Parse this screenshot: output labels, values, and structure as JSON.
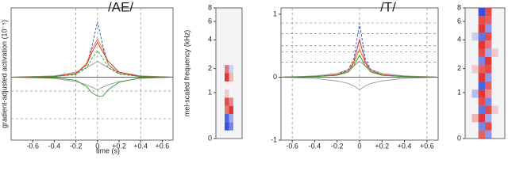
{
  "chart_data": [
    {
      "type": "line",
      "title": "/AE/",
      "xlabel": "time (s)",
      "ylabel": "gradient-adjusted activation (10⁻⁵)",
      "xlim": [
        -0.8,
        0.7
      ],
      "ylim": [
        -1,
        1.1
      ],
      "xticks": [
        -0.6,
        -0.4,
        -0.2,
        0,
        {
          "value": 0.2,
          "label": "+0.2"
        },
        {
          "value": 0.4,
          "label": "+0.4"
        },
        {
          "value": 0.6,
          "label": "+0.6"
        }
      ],
      "vlines": [
        -0.2,
        0,
        0.4
      ],
      "hlines": [
        -0.22,
        -0.66
      ],
      "x": [
        -0.8,
        -0.4,
        -0.2,
        -0.1,
        -0.05,
        0,
        0.05,
        0.1,
        0.2,
        0.4,
        0.7
      ],
      "series": [
        {
          "color": "#999999",
          "values": [
            0,
            0.02,
            0.08,
            0.15,
            0.2,
            0.25,
            0.2,
            0.15,
            0.08,
            0.02,
            0
          ]
        },
        {
          "color": "#999999",
          "values": [
            0,
            -0.02,
            -0.07,
            -0.12,
            -0.16,
            -0.2,
            -0.16,
            -0.12,
            -0.07,
            -0.02,
            0
          ]
        },
        {
          "color": "#1f4fd8",
          "dashed": true,
          "values": [
            0,
            0.01,
            0.05,
            0.2,
            0.5,
            0.88,
            0.5,
            0.2,
            0.05,
            0.01,
            0
          ]
        },
        {
          "color": "#e07020",
          "values": [
            0,
            0.01,
            0.05,
            0.22,
            0.45,
            0.6,
            0.45,
            0.2,
            0.06,
            0.01,
            0
          ]
        },
        {
          "color": "#d62728",
          "values": [
            0,
            0.01,
            0.06,
            0.2,
            0.4,
            0.55,
            0.4,
            0.25,
            0.08,
            0.01,
            0
          ]
        },
        {
          "color": "#2ca02c",
          "dashed": true,
          "values": [
            0,
            0.01,
            0.04,
            0.15,
            0.3,
            0.42,
            0.3,
            0.15,
            0.05,
            0.01,
            0
          ]
        },
        {
          "color": "#2ca02c",
          "values": [
            0,
            -0.01,
            -0.05,
            -0.15,
            -0.25,
            -0.3,
            -0.3,
            -0.2,
            -0.08,
            -0.01,
            0
          ]
        }
      ]
    },
    {
      "type": "heatmap",
      "ylabel": "mel-scaled frequency (kHz)",
      "scale": "mel",
      "ylim": [
        0,
        8
      ],
      "yticks": [
        8,
        6,
        4,
        2,
        1,
        0
      ],
      "z": [
        [
          0,
          0,
          0,
          0,
          0,
          0
        ],
        [
          0,
          0,
          -0.9,
          -0.6,
          0,
          0
        ],
        [
          0,
          0,
          -0.8,
          -0.4,
          0,
          0
        ],
        [
          0,
          0,
          0.6,
          0.9,
          0,
          0
        ],
        [
          0,
          0,
          0.8,
          0.5,
          0,
          0
        ],
        [
          0,
          0,
          0.2,
          0,
          0,
          0
        ],
        [
          0,
          0,
          0,
          0,
          0,
          0
        ],
        [
          0,
          0,
          0.9,
          0.3,
          0,
          0
        ],
        [
          0,
          0,
          0.6,
          -0.2,
          0,
          0
        ],
        [
          0,
          0,
          0,
          0,
          0,
          0
        ],
        [
          0,
          0,
          0,
          0,
          0,
          0
        ],
        [
          0,
          0,
          0,
          0,
          0,
          0
        ],
        [
          0,
          0,
          0,
          0,
          0,
          0
        ],
        [
          0,
          0,
          0,
          0,
          0,
          0
        ],
        [
          0,
          0,
          0,
          0,
          0,
          0
        ],
        [
          0,
          0,
          0,
          0,
          0,
          0
        ]
      ]
    },
    {
      "type": "line",
      "title": "/T/",
      "xlim": [
        -0.7,
        0.7
      ],
      "ylim": [
        -1,
        1.1
      ],
      "xticks": [
        -0.6,
        -0.4,
        -0.2,
        0,
        {
          "value": 0.2,
          "label": "+0.2"
        },
        {
          "value": 0.4,
          "label": "+0.4"
        },
        {
          "value": 0.6,
          "label": "+0.6"
        }
      ],
      "yticks": [
        1,
        0,
        -1
      ],
      "vlines": [
        -0.6,
        0,
        0.6
      ],
      "hlines": [
        0.86,
        0.69,
        0.5,
        0.4,
        0.24
      ],
      "x": [
        -0.7,
        -0.4,
        -0.2,
        -0.1,
        -0.05,
        0,
        0.05,
        0.1,
        0.2,
        0.4,
        0.7
      ],
      "series": [
        {
          "color": "#999999",
          "values": [
            0,
            0.02,
            0.06,
            0.12,
            0.18,
            0.25,
            0.18,
            0.12,
            0.06,
            0.02,
            0
          ]
        },
        {
          "color": "#999999",
          "values": [
            0,
            -0.02,
            -0.06,
            -0.1,
            -0.14,
            -0.2,
            -0.14,
            -0.1,
            -0.06,
            -0.02,
            0
          ]
        },
        {
          "color": "#1f4fd8",
          "dashed": true,
          "values": [
            0,
            0.01,
            0.04,
            0.12,
            0.3,
            0.85,
            0.3,
            0.12,
            0.04,
            0.01,
            0
          ]
        },
        {
          "color": "#d62728",
          "values": [
            0,
            0.01,
            0.04,
            0.1,
            0.25,
            0.6,
            0.25,
            0.1,
            0.04,
            0.01,
            0
          ]
        },
        {
          "color": "#e07020",
          "values": [
            0,
            0.01,
            0.03,
            0.1,
            0.22,
            0.45,
            0.22,
            0.1,
            0.03,
            0.01,
            0
          ]
        },
        {
          "color": "#2ca02c",
          "values": [
            0,
            0.01,
            0.03,
            0.08,
            0.18,
            0.35,
            0.18,
            0.08,
            0.03,
            0.01,
            0
          ]
        }
      ]
    },
    {
      "type": "heatmap",
      "scale": "mel",
      "ylim": [
        0,
        8
      ],
      "yticks": [
        8,
        6,
        4,
        2,
        1,
        0
      ],
      "z": [
        [
          0,
          0,
          0.7,
          -0.5,
          0,
          0
        ],
        [
          0,
          0,
          -0.6,
          0.8,
          0,
          0
        ],
        [
          0,
          0.3,
          0.9,
          -0.4,
          0,
          0
        ],
        [
          0,
          0,
          -0.7,
          0.8,
          0.2,
          0
        ],
        [
          0,
          0,
          0.8,
          -0.6,
          0,
          0
        ],
        [
          0,
          -0.3,
          0.9,
          0.5,
          0,
          0
        ],
        [
          0,
          0,
          -0.8,
          0.7,
          0,
          0
        ],
        [
          0,
          0,
          0.9,
          -0.5,
          0,
          0
        ],
        [
          0,
          0.2,
          0.7,
          0.8,
          0,
          0
        ],
        [
          0,
          0,
          -0.6,
          0.9,
          0,
          0
        ],
        [
          0,
          0,
          0.8,
          -0.4,
          0.2,
          0
        ],
        [
          0,
          0,
          0.9,
          0.6,
          0,
          0
        ],
        [
          0,
          -0.2,
          -0.7,
          0.8,
          0,
          0
        ],
        [
          0,
          0,
          0.9,
          -0.5,
          0,
          0
        ],
        [
          0,
          0,
          0.8,
          0.7,
          0,
          0
        ],
        [
          0,
          0,
          -0.9,
          0.8,
          0,
          0
        ]
      ]
    }
  ]
}
